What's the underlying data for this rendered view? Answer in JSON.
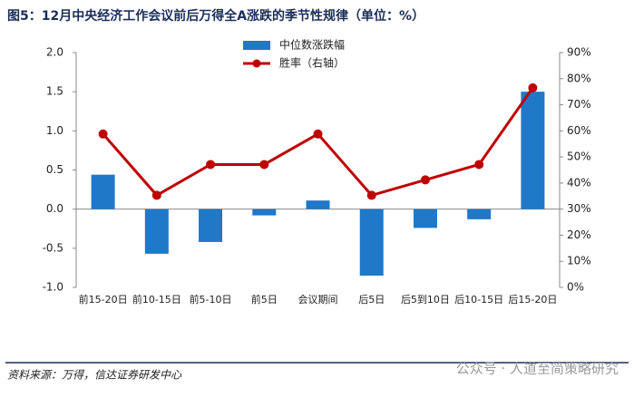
{
  "chart_data": {
    "type": "bar_line",
    "title": "图5：12月中央经济工作会议前后万得全A涨跌的季节性规律（单位：%）",
    "source": "资料来源：万得，信达证券研发中心",
    "watermark": "公众号 · 人道至简策略研究",
    "categories": [
      "前15-20日",
      "前10-15日",
      "前5-10日",
      "前5日",
      "会议期间",
      "后5日",
      "后5到10日",
      "后10-15日",
      "后15-20日"
    ],
    "series": [
      {
        "name": "中位数涨跌幅",
        "type": "bar",
        "color": "#1f78c8",
        "values": [
          0.44,
          -0.57,
          -0.42,
          -0.08,
          0.11,
          -0.85,
          -0.24,
          -0.13,
          1.5
        ]
      },
      {
        "name": "胜率（右轴）",
        "type": "line",
        "axis": "y2",
        "color": "#c00000",
        "values": [
          58.8,
          35.3,
          47.1,
          47.1,
          58.8,
          35.3,
          41.2,
          47.1,
          76.5
        ]
      }
    ],
    "ylim": [
      -1.0,
      2.0
    ],
    "yticks": [
      {
        "value": -1.0,
        "label": "-1.0"
      },
      -0.5,
      {
        "value": 0,
        "label": "0.0"
      },
      0.5,
      {
        "value": 1.0,
        "label": "1.0"
      },
      1.5,
      {
        "value": 2.0,
        "label": "2.0"
      }
    ],
    "y2lim": [
      0,
      90
    ],
    "y2ticks": [
      {
        "value": 0,
        "label": "0%"
      },
      {
        "value": 10,
        "label": "10%"
      },
      {
        "value": 20,
        "label": "20%"
      },
      {
        "value": 30,
        "label": "30%"
      },
      {
        "value": 40,
        "label": "40%"
      },
      {
        "value": 50,
        "label": "50%"
      },
      {
        "value": 60,
        "label": "60%"
      },
      {
        "value": 70,
        "label": "70%"
      },
      {
        "value": 80,
        "label": "80%"
      },
      {
        "value": 90,
        "label": "90%"
      }
    ]
  }
}
